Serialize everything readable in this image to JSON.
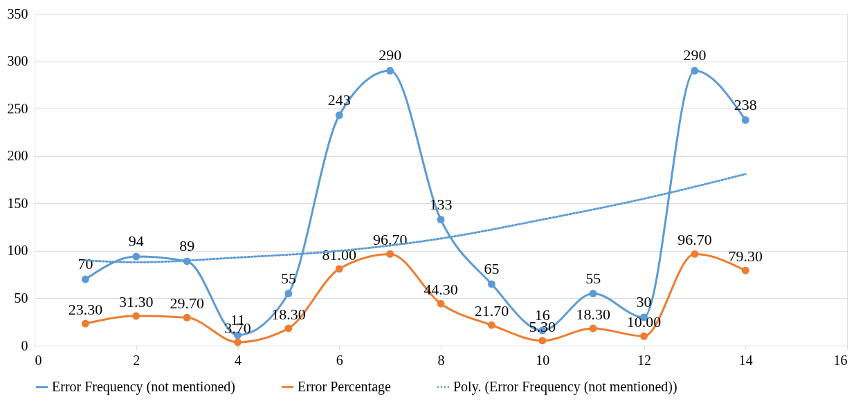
{
  "chart_data": {
    "type": "line",
    "xlim": [
      0,
      16
    ],
    "xticks": [
      0,
      2,
      4,
      6,
      8,
      10,
      12,
      14,
      16
    ],
    "ylim": [
      0,
      350
    ],
    "yticks": [
      0,
      50,
      100,
      150,
      200,
      250,
      300,
      350
    ],
    "grid": "y",
    "legend": "bottom",
    "x": [
      1,
      2,
      3,
      4,
      5,
      6,
      7,
      8,
      9,
      10,
      11,
      12,
      13,
      14
    ],
    "series": [
      {
        "name": "Error Frequency (not mentioned)",
        "color": "#5b9bd5",
        "marker": "circle",
        "line_style": "solid",
        "values": [
          70,
          94,
          89,
          11,
          55,
          243,
          290,
          133,
          65,
          16,
          55,
          30,
          290,
          238
        ],
        "value_labels": [
          "70",
          "94",
          "89",
          "11",
          "55",
          "243",
          "290",
          "133",
          "65",
          "16",
          "55",
          "30",
          "290",
          "238"
        ]
      },
      {
        "name": "Error Percentage",
        "color": "#ed7d31",
        "marker": "circle",
        "line_style": "solid",
        "values": [
          23.3,
          31.3,
          29.7,
          3.7,
          18.3,
          81.0,
          96.7,
          44.3,
          21.7,
          5.3,
          18.3,
          10.0,
          96.7,
          79.3
        ],
        "value_labels": [
          "23.30",
          "31.30",
          "29.70",
          "3.70",
          "18.30",
          "81.00",
          "96.70",
          "44.30",
          "21.70",
          "5.30",
          "18.30",
          "10.00",
          "96.70",
          "79.30"
        ]
      },
      {
        "name": "Poly. (Error Frequency (not mentioned))",
        "color": "#5b9bd5",
        "marker": "none",
        "line_style": "dotted",
        "x": [
          1,
          2,
          4,
          6,
          8,
          10,
          12,
          14
        ],
        "values": [
          90,
          88,
          93,
          100,
          113,
          133,
          155,
          181
        ]
      }
    ]
  }
}
